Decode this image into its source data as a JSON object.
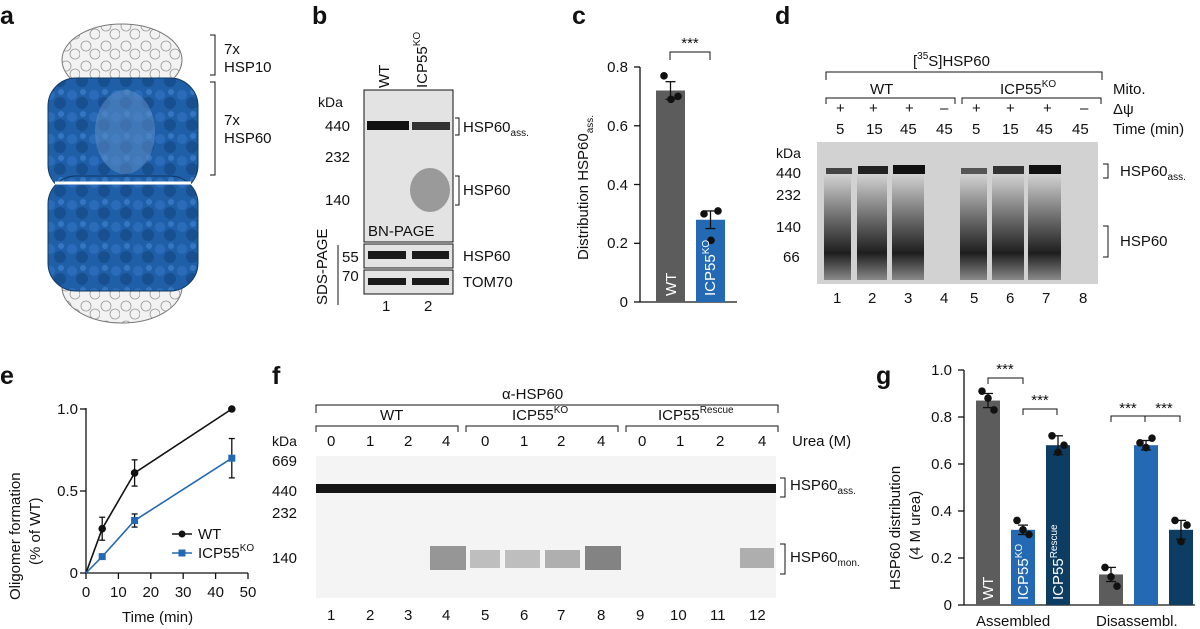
{
  "panels": {
    "a": {
      "letter": "a",
      "labels": [
        "7x HSP10",
        "7x HSP60"
      ],
      "hsp10_line1": "7x",
      "hsp10_line2": "HSP10",
      "hsp60_line1": "7x",
      "hsp60_line2": "HSP60"
    },
    "b": {
      "letter": "b",
      "lanes_header": [
        "WT",
        "ICP55KO"
      ],
      "wt": "WT",
      "ko_main": "ICP55",
      "ko_sup": "KO",
      "kda": "kDa",
      "markers_bn": [
        "440",
        "232",
        "140"
      ],
      "bn_label": "BN-PAGE",
      "sds_label": "SDS-PAGE",
      "markers_sds": [
        "55",
        "70"
      ],
      "right_labels": [
        "HSP60ass.",
        "HSP60",
        "HSP60",
        "TOM70"
      ],
      "hsp60ass_main": "HSP60",
      "hsp60ass_sub": "ass.",
      "lane_numbers": [
        "1",
        "2"
      ]
    },
    "c": {
      "letter": "c",
      "significance": "***",
      "ylabel_main": "Distribution HSP60",
      "ylabel_sub": "ass.",
      "yticks": [
        "0",
        "0.2",
        "0.4",
        "0.6",
        "0.8"
      ],
      "bar_wt": "WT",
      "bar_ko_main": "ICP55",
      "bar_ko_sup": "KO"
    },
    "d": {
      "letter": "d",
      "title_sup": "35",
      "title_pre": "[",
      "title_mid": "S]HSP60",
      "groups": [
        "WT",
        "ICP55KO"
      ],
      "wt": "WT",
      "ko_main": "ICP55",
      "ko_sup": "KO",
      "row_labels": [
        "Mito.",
        "Δψ",
        "Time (min)"
      ],
      "psi": [
        "+",
        "+",
        "+",
        "–",
        "+",
        "+",
        "+",
        "–"
      ],
      "times": [
        "5",
        "15",
        "45",
        "45",
        "5",
        "15",
        "45",
        "45"
      ],
      "kda": "kDa",
      "markers": [
        "440",
        "232",
        "140",
        "66"
      ],
      "hsp60ass_main": "HSP60",
      "hsp60ass_sub": "ass.",
      "hsp60": "HSP60",
      "lane_numbers": [
        "1",
        "2",
        "3",
        "4",
        "5",
        "6",
        "7",
        "8"
      ]
    },
    "e": {
      "letter": "e",
      "ylabel1": "Oligomer formation",
      "ylabel2": "(% of WT)",
      "yticks": [
        "0",
        "0.5",
        "1.0"
      ],
      "xticks": [
        "0",
        "10",
        "20",
        "30",
        "40",
        "50"
      ],
      "xlabel": "Time (min)",
      "legend_wt": "WT",
      "legend_ko_main": "ICP55",
      "legend_ko_sup": "KO"
    },
    "f": {
      "letter": "f",
      "title": "α-HSP60",
      "groups_wt": "WT",
      "groups_ko_main": "ICP55",
      "groups_ko_sup": "KO",
      "groups_res_main": "ICP55",
      "groups_res_sup": "Rescue",
      "urea_values": [
        "0",
        "1",
        "2",
        "4",
        "0",
        "1",
        "2",
        "4",
        "0",
        "1",
        "2",
        "4"
      ],
      "urea_label": "Urea (M)",
      "kda": "kDa",
      "markers": [
        "669",
        "440",
        "232",
        "140"
      ],
      "ass_main": "HSP60",
      "ass_sub": "ass.",
      "mon_main": "HSP60",
      "mon_sub": "mon.",
      "lane_numbers": [
        "1",
        "2",
        "3",
        "4",
        "5",
        "6",
        "7",
        "8",
        "9",
        "10",
        "11",
        "12"
      ]
    },
    "g": {
      "letter": "g",
      "ylabel1": "HSP60 distribution",
      "ylabel2": "(4 M urea)",
      "yticks": [
        "0",
        "0.2",
        "0.4",
        "0.6",
        "0.8",
        "1.0"
      ],
      "sig": [
        "***",
        "***",
        "***",
        "***"
      ],
      "bar_wt": "WT",
      "bar_ko_main": "ICP55",
      "bar_ko_sup": "KO",
      "bar_res_main": "ICP55",
      "bar_res_sup": "Rescue",
      "groups": [
        "Assembled",
        "Disassembl."
      ]
    }
  },
  "colors": {
    "wt_gray": "#5c5c5c",
    "ko_blue": "#2469b3",
    "rescue_navy": "#0d3d63",
    "structure_blue": "#1f5fa8"
  },
  "chart_data": [
    {
      "panel": "c",
      "type": "bar",
      "categories": [
        "WT",
        "ICP55KO"
      ],
      "values": [
        0.72,
        0.28
      ],
      "errors": [
        0.03,
        0.03
      ],
      "points": [
        [
          0.77,
          0.69,
          0.7
        ],
        [
          0.3,
          0.21,
          0.31
        ]
      ],
      "ylim": [
        0,
        0.8
      ],
      "ylabel": "Distribution HSP60ass."
    },
    {
      "panel": "e",
      "type": "line",
      "x": [
        5,
        15,
        45
      ],
      "series": [
        {
          "name": "WT",
          "values": [
            0.27,
            0.61,
            1.0
          ],
          "errors": [
            0.07,
            0.08,
            0.0
          ]
        },
        {
          "name": "ICP55KO",
          "values": [
            0.1,
            0.32,
            0.7
          ],
          "errors": [
            0.01,
            0.04,
            0.12
          ]
        }
      ],
      "xlim": [
        0,
        50
      ],
      "ylim": [
        0,
        1.0
      ],
      "xlabel": "Time (min)",
      "ylabel": "Oligomer formation (% of WT)"
    },
    {
      "panel": "g",
      "type": "bar",
      "categories": [
        "Assembled",
        "Disassembl."
      ],
      "series": [
        {
          "name": "WT",
          "values": [
            0.87,
            0.13
          ],
          "errors": [
            0.03,
            0.03
          ],
          "points": [
            [
              0.91,
              0.88,
              0.83
            ],
            [
              0.16,
              0.12,
              0.08
            ]
          ]
        },
        {
          "name": "ICP55KO",
          "values": [
            0.32,
            0.68
          ],
          "errors": [
            0.02,
            0.02
          ],
          "points": [
            [
              0.36,
              0.32,
              0.3
            ],
            [
              0.69,
              0.67,
              0.71
            ]
          ]
        },
        {
          "name": "ICP55Rescue",
          "values": [
            0.68,
            0.32
          ],
          "errors": [
            0.04,
            0.04
          ],
          "points": [
            [
              0.72,
              0.65,
              0.68
            ],
            [
              0.36,
              0.27,
              0.34
            ]
          ]
        }
      ],
      "ylim": [
        0,
        1.0
      ],
      "ylabel": "HSP60 distribution (4 M urea)"
    }
  ]
}
